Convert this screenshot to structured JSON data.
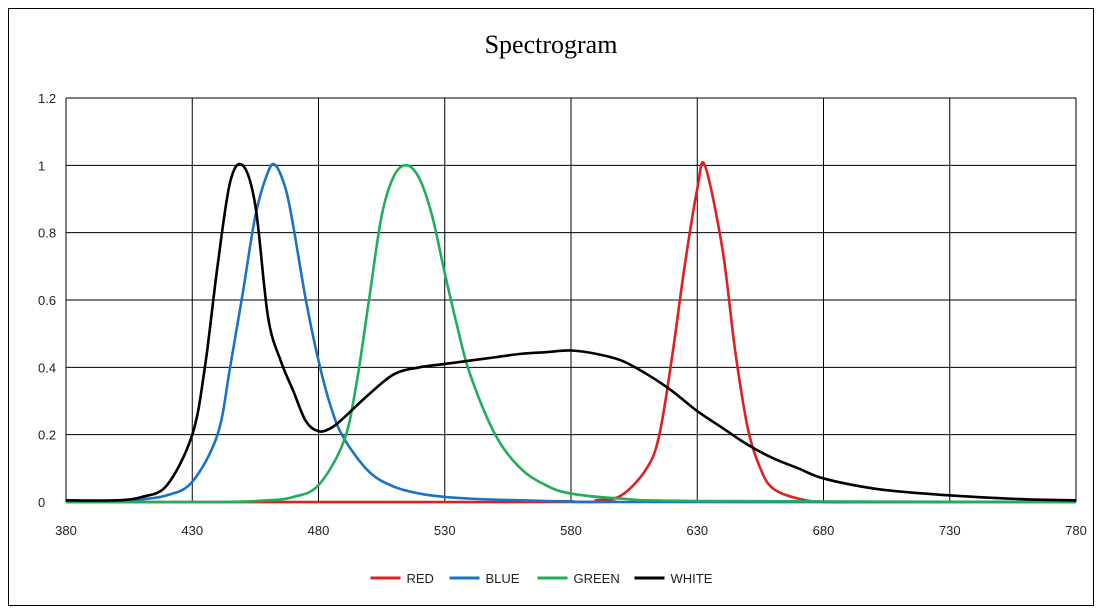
{
  "chart_data": {
    "type": "line",
    "title": "Spectrogram",
    "xlabel": "",
    "ylabel": "",
    "xlim": [
      380,
      780
    ],
    "ylim": [
      0,
      1.2
    ],
    "x_ticks": [
      380,
      430,
      480,
      530,
      580,
      630,
      680,
      730,
      780
    ],
    "y_ticks": [
      0,
      0.2,
      0.4,
      0.6,
      0.8,
      1,
      1.2
    ],
    "grid": true,
    "legend_position": "bottom",
    "series": [
      {
        "name": "RED",
        "color": "#e02020",
        "x": [
          380,
          580,
          590,
          600,
          610,
          615,
          620,
          625,
          630,
          633,
          640,
          645,
          650,
          655,
          660,
          670,
          680,
          700,
          780
        ],
        "y": [
          0,
          0,
          0.005,
          0.02,
          0.1,
          0.2,
          0.43,
          0.7,
          0.93,
          1.0,
          0.75,
          0.45,
          0.22,
          0.1,
          0.04,
          0.01,
          0,
          0,
          0
        ]
      },
      {
        "name": "BLUE",
        "color": "#1a73c5",
        "x": [
          380,
          400,
          410,
          420,
          430,
          440,
          445,
          450,
          455,
          460,
          463,
          467,
          470,
          475,
          480,
          485,
          490,
          500,
          510,
          520,
          530,
          540,
          550,
          560,
          570,
          580,
          600,
          780
        ],
        "y": [
          0,
          0.002,
          0.008,
          0.02,
          0.06,
          0.2,
          0.4,
          0.62,
          0.85,
          0.98,
          1.0,
          0.93,
          0.82,
          0.6,
          0.42,
          0.28,
          0.19,
          0.09,
          0.045,
          0.025,
          0.015,
          0.01,
          0.007,
          0.005,
          0.003,
          0.002,
          0,
          0
        ]
      },
      {
        "name": "GREEN",
        "color": "#1fae5a",
        "x": [
          380,
          440,
          460,
          470,
          480,
          490,
          495,
          500,
          505,
          510,
          515,
          520,
          525,
          530,
          535,
          540,
          550,
          560,
          570,
          580,
          600,
          630,
          780
        ],
        "y": [
          0,
          0,
          0.005,
          0.015,
          0.05,
          0.18,
          0.35,
          0.6,
          0.85,
          0.97,
          1.0,
          0.96,
          0.85,
          0.68,
          0.52,
          0.38,
          0.2,
          0.1,
          0.05,
          0.025,
          0.01,
          0.003,
          0
        ]
      },
      {
        "name": "WHITE",
        "color": "#000000",
        "x": [
          380,
          400,
          410,
          420,
          430,
          435,
          440,
          445,
          450,
          455,
          460,
          465,
          470,
          475,
          480,
          485,
          490,
          500,
          510,
          520,
          530,
          540,
          550,
          560,
          570,
          580,
          590,
          600,
          610,
          620,
          630,
          640,
          650,
          660,
          670,
          680,
          700,
          720,
          740,
          760,
          780
        ],
        "y": [
          0.005,
          0.005,
          0.015,
          0.05,
          0.2,
          0.4,
          0.7,
          0.95,
          1.0,
          0.88,
          0.55,
          0.42,
          0.33,
          0.24,
          0.21,
          0.22,
          0.25,
          0.32,
          0.38,
          0.4,
          0.41,
          0.42,
          0.43,
          0.44,
          0.445,
          0.45,
          0.44,
          0.42,
          0.38,
          0.33,
          0.27,
          0.22,
          0.17,
          0.13,
          0.1,
          0.07,
          0.04,
          0.025,
          0.015,
          0.008,
          0.005
        ]
      }
    ]
  }
}
